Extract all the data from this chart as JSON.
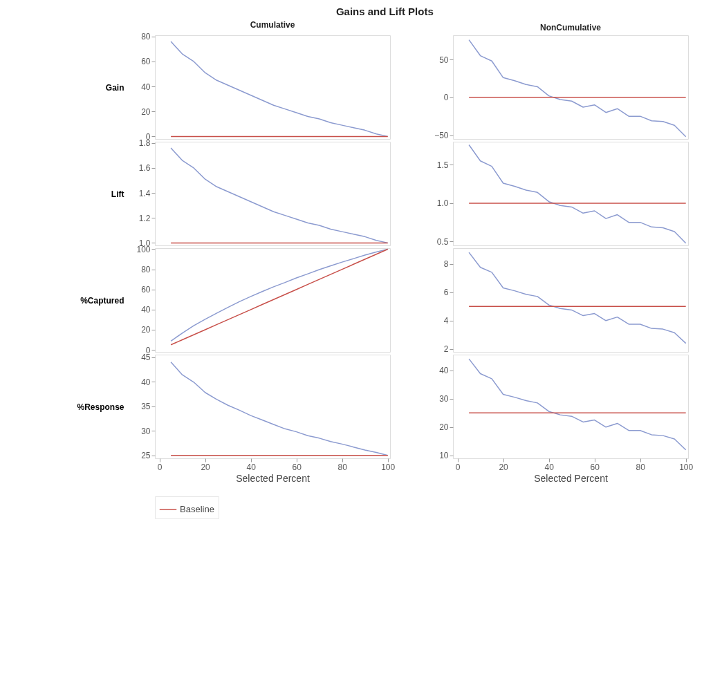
{
  "chart_data": [
    {
      "type": "line",
      "title": "Gains and Lift Plots",
      "subtitle": "Cumulative",
      "ylabel": "Gain",
      "x": [
        5,
        10,
        15,
        20,
        25,
        30,
        35,
        40,
        45,
        50,
        55,
        60,
        65,
        70,
        75,
        80,
        85,
        90,
        95,
        100
      ],
      "xlim": [
        -2,
        101
      ],
      "xticks": [
        0,
        20,
        40,
        60,
        80,
        100
      ],
      "ylim": [
        -2,
        81
      ],
      "yticks": [
        0,
        20,
        40,
        60,
        80
      ],
      "tick_labels": "y",
      "grid": false,
      "legend": "bottom",
      "series": [
        {
          "color": "#8c9bd0",
          "values": [
            76,
            66,
            60,
            51,
            45,
            41,
            37,
            33,
            29,
            25,
            22,
            19,
            16,
            14,
            11,
            9,
            7,
            5,
            2,
            0
          ]
        },
        {
          "name": "Baseline",
          "color": "#c8504a",
          "values": [
            0,
            0,
            0,
            0,
            0,
            0,
            0,
            0,
            0,
            0,
            0,
            0,
            0,
            0,
            0,
            0,
            0,
            0,
            0,
            0
          ]
        }
      ]
    },
    {
      "type": "line",
      "subtitle": "NonCumulative",
      "x": [
        5,
        10,
        15,
        20,
        25,
        30,
        35,
        40,
        45,
        50,
        55,
        60,
        65,
        70,
        75,
        80,
        85,
        90,
        95,
        100
      ],
      "xlim": [
        -2,
        101
      ],
      "xticks": [
        0,
        20,
        40,
        60,
        80,
        100
      ],
      "ylim": [
        -55,
        82
      ],
      "yticks": [
        -50,
        0,
        50
      ],
      "tick_labels": "y",
      "grid": false,
      "legend": "bottom",
      "series": [
        {
          "color": "#8c9bd0",
          "values": [
            76,
            55,
            48,
            26,
            22,
            17,
            14,
            2,
            -3,
            -5,
            -13,
            -10,
            -20,
            -15,
            -25,
            -25,
            -31,
            -32,
            -37,
            -52
          ]
        },
        {
          "name": "Baseline",
          "color": "#c8504a",
          "values": [
            0,
            0,
            0,
            0,
            0,
            0,
            0,
            0,
            0,
            0,
            0,
            0,
            0,
            0,
            0,
            0,
            0,
            0,
            0,
            0
          ]
        }
      ]
    },
    {
      "type": "line",
      "ylabel": "Lift",
      "x": [
        5,
        10,
        15,
        20,
        25,
        30,
        35,
        40,
        45,
        50,
        55,
        60,
        65,
        70,
        75,
        80,
        85,
        90,
        95,
        100
      ],
      "xlim": [
        -2,
        101
      ],
      "xticks": [
        0,
        20,
        40,
        60,
        80,
        100
      ],
      "ylim": [
        0.98,
        1.81
      ],
      "yticks": [
        {
          "value": 1.0,
          "label": "1.0"
        },
        1.2,
        1.4,
        1.6,
        1.8
      ],
      "tick_labels": "y",
      "grid": false,
      "legend": "bottom",
      "series": [
        {
          "color": "#8c9bd0",
          "values": [
            1.76,
            1.66,
            1.6,
            1.51,
            1.45,
            1.41,
            1.37,
            1.33,
            1.29,
            1.25,
            1.22,
            1.19,
            1.16,
            1.14,
            1.11,
            1.09,
            1.07,
            1.05,
            1.02,
            1.0
          ]
        },
        {
          "name": "Baseline",
          "color": "#c8504a",
          "values": [
            1,
            1,
            1,
            1,
            1,
            1,
            1,
            1,
            1,
            1,
            1,
            1,
            1,
            1,
            1,
            1,
            1,
            1,
            1,
            1
          ]
        }
      ]
    },
    {
      "type": "line",
      "x": [
        5,
        10,
        15,
        20,
        25,
        30,
        35,
        40,
        45,
        50,
        55,
        60,
        65,
        70,
        75,
        80,
        85,
        90,
        95,
        100
      ],
      "xlim": [
        -2,
        101
      ],
      "xticks": [
        0,
        20,
        40,
        60,
        80,
        100
      ],
      "ylim": [
        0.45,
        1.8
      ],
      "yticks": [
        0.5,
        {
          "value": 1.0,
          "label": "1.0"
        },
        1.5
      ],
      "tick_labels": "y",
      "grid": false,
      "legend": "bottom",
      "series": [
        {
          "color": "#8c9bd0",
          "values": [
            1.76,
            1.55,
            1.48,
            1.26,
            1.22,
            1.17,
            1.14,
            1.02,
            0.97,
            0.95,
            0.87,
            0.9,
            0.8,
            0.85,
            0.75,
            0.75,
            0.69,
            0.68,
            0.63,
            0.48
          ]
        },
        {
          "name": "Baseline",
          "color": "#c8504a",
          "values": [
            1,
            1,
            1,
            1,
            1,
            1,
            1,
            1,
            1,
            1,
            1,
            1,
            1,
            1,
            1,
            1,
            1,
            1,
            1,
            1
          ]
        }
      ]
    },
    {
      "type": "line",
      "ylabel": "%Captured",
      "x": [
        5,
        10,
        15,
        20,
        25,
        30,
        35,
        40,
        45,
        50,
        55,
        60,
        65,
        70,
        75,
        80,
        85,
        90,
        95,
        100
      ],
      "xlim": [
        -2,
        101
      ],
      "xticks": [
        0,
        20,
        40,
        60,
        80,
        100
      ],
      "ylim": [
        -2,
        101
      ],
      "yticks": [
        0,
        20,
        40,
        60,
        80,
        100
      ],
      "tick_labels": "y",
      "grid": false,
      "legend": "bottom",
      "series": [
        {
          "color": "#8c9bd0",
          "values": [
            8.8,
            16.6,
            24,
            30.3,
            36.4,
            42.2,
            47.9,
            53,
            57.9,
            62.6,
            66.9,
            71.5,
            75.5,
            79.7,
            83.5,
            87.2,
            90.6,
            94.1,
            97.2,
            100
          ]
        },
        {
          "name": "Baseline",
          "color": "#c8504a",
          "values": [
            5,
            10,
            15,
            20,
            25,
            30,
            35,
            40,
            45,
            50,
            55,
            60,
            65,
            70,
            75,
            80,
            85,
            90,
            95,
            100
          ]
        }
      ]
    },
    {
      "type": "line",
      "x": [
        5,
        10,
        15,
        20,
        25,
        30,
        35,
        40,
        45,
        50,
        55,
        60,
        65,
        70,
        75,
        80,
        85,
        90,
        95,
        100
      ],
      "xlim": [
        -2,
        101
      ],
      "xticks": [
        0,
        20,
        40,
        60,
        80,
        100
      ],
      "ylim": [
        1.8,
        9.1
      ],
      "yticks": [
        2,
        4,
        6,
        8
      ],
      "tick_labels": "y",
      "grid": false,
      "legend": "bottom",
      "series": [
        {
          "color": "#8c9bd0",
          "values": [
            8.8,
            7.75,
            7.4,
            6.3,
            6.1,
            5.85,
            5.7,
            5.1,
            4.85,
            4.75,
            4.35,
            4.5,
            4.0,
            4.25,
            3.75,
            3.75,
            3.45,
            3.4,
            3.15,
            2.4
          ]
        },
        {
          "name": "Baseline",
          "color": "#c8504a",
          "values": [
            5,
            5,
            5,
            5,
            5,
            5,
            5,
            5,
            5,
            5,
            5,
            5,
            5,
            5,
            5,
            5,
            5,
            5,
            5,
            5
          ]
        }
      ]
    },
    {
      "type": "line",
      "ylabel": "%Response",
      "xlabel": "Selected Percent",
      "x": [
        5,
        10,
        15,
        20,
        25,
        30,
        35,
        40,
        45,
        50,
        55,
        60,
        65,
        70,
        75,
        80,
        85,
        90,
        95,
        100
      ],
      "xlim": [
        -2,
        101
      ],
      "xticks": [
        0,
        20,
        40,
        60,
        80,
        100
      ],
      "ylim": [
        24.4,
        45.5
      ],
      "yticks": [
        25,
        30,
        35,
        40,
        45
      ],
      "grid": false,
      "legend": "bottom",
      "series": [
        {
          "color": "#8c9bd0",
          "values": [
            44,
            41.4,
            39.9,
            37.8,
            36.4,
            35.2,
            34.2,
            33.1,
            32.2,
            31.3,
            30.4,
            29.8,
            29,
            28.5,
            27.8,
            27.3,
            26.7,
            26.1,
            25.6,
            25
          ]
        },
        {
          "name": "Baseline",
          "color": "#c8504a",
          "values": [
            25,
            25,
            25,
            25,
            25,
            25,
            25,
            25,
            25,
            25,
            25,
            25,
            25,
            25,
            25,
            25,
            25,
            25,
            25,
            25
          ]
        }
      ]
    },
    {
      "type": "line",
      "xlabel": "Selected Percent",
      "x": [
        5,
        10,
        15,
        20,
        25,
        30,
        35,
        40,
        45,
        50,
        55,
        60,
        65,
        70,
        75,
        80,
        85,
        90,
        95,
        100
      ],
      "xlim": [
        -2,
        101
      ],
      "xticks": [
        0,
        20,
        40,
        60,
        80,
        100
      ],
      "ylim": [
        9,
        45.5
      ],
      "yticks": [
        10,
        20,
        30,
        40
      ],
      "grid": false,
      "legend": "bottom",
      "series": [
        {
          "color": "#8c9bd0",
          "values": [
            44,
            38.8,
            37,
            31.5,
            30.5,
            29.3,
            28.5,
            25.5,
            24.3,
            23.8,
            21.8,
            22.5,
            20,
            21.3,
            18.8,
            18.8,
            17.3,
            17,
            15.8,
            12
          ]
        },
        {
          "name": "Baseline",
          "color": "#c8504a",
          "values": [
            25,
            25,
            25,
            25,
            25,
            25,
            25,
            25,
            25,
            25,
            25,
            25,
            25,
            25,
            25,
            25,
            25,
            25,
            25,
            25
          ]
        }
      ]
    }
  ]
}
